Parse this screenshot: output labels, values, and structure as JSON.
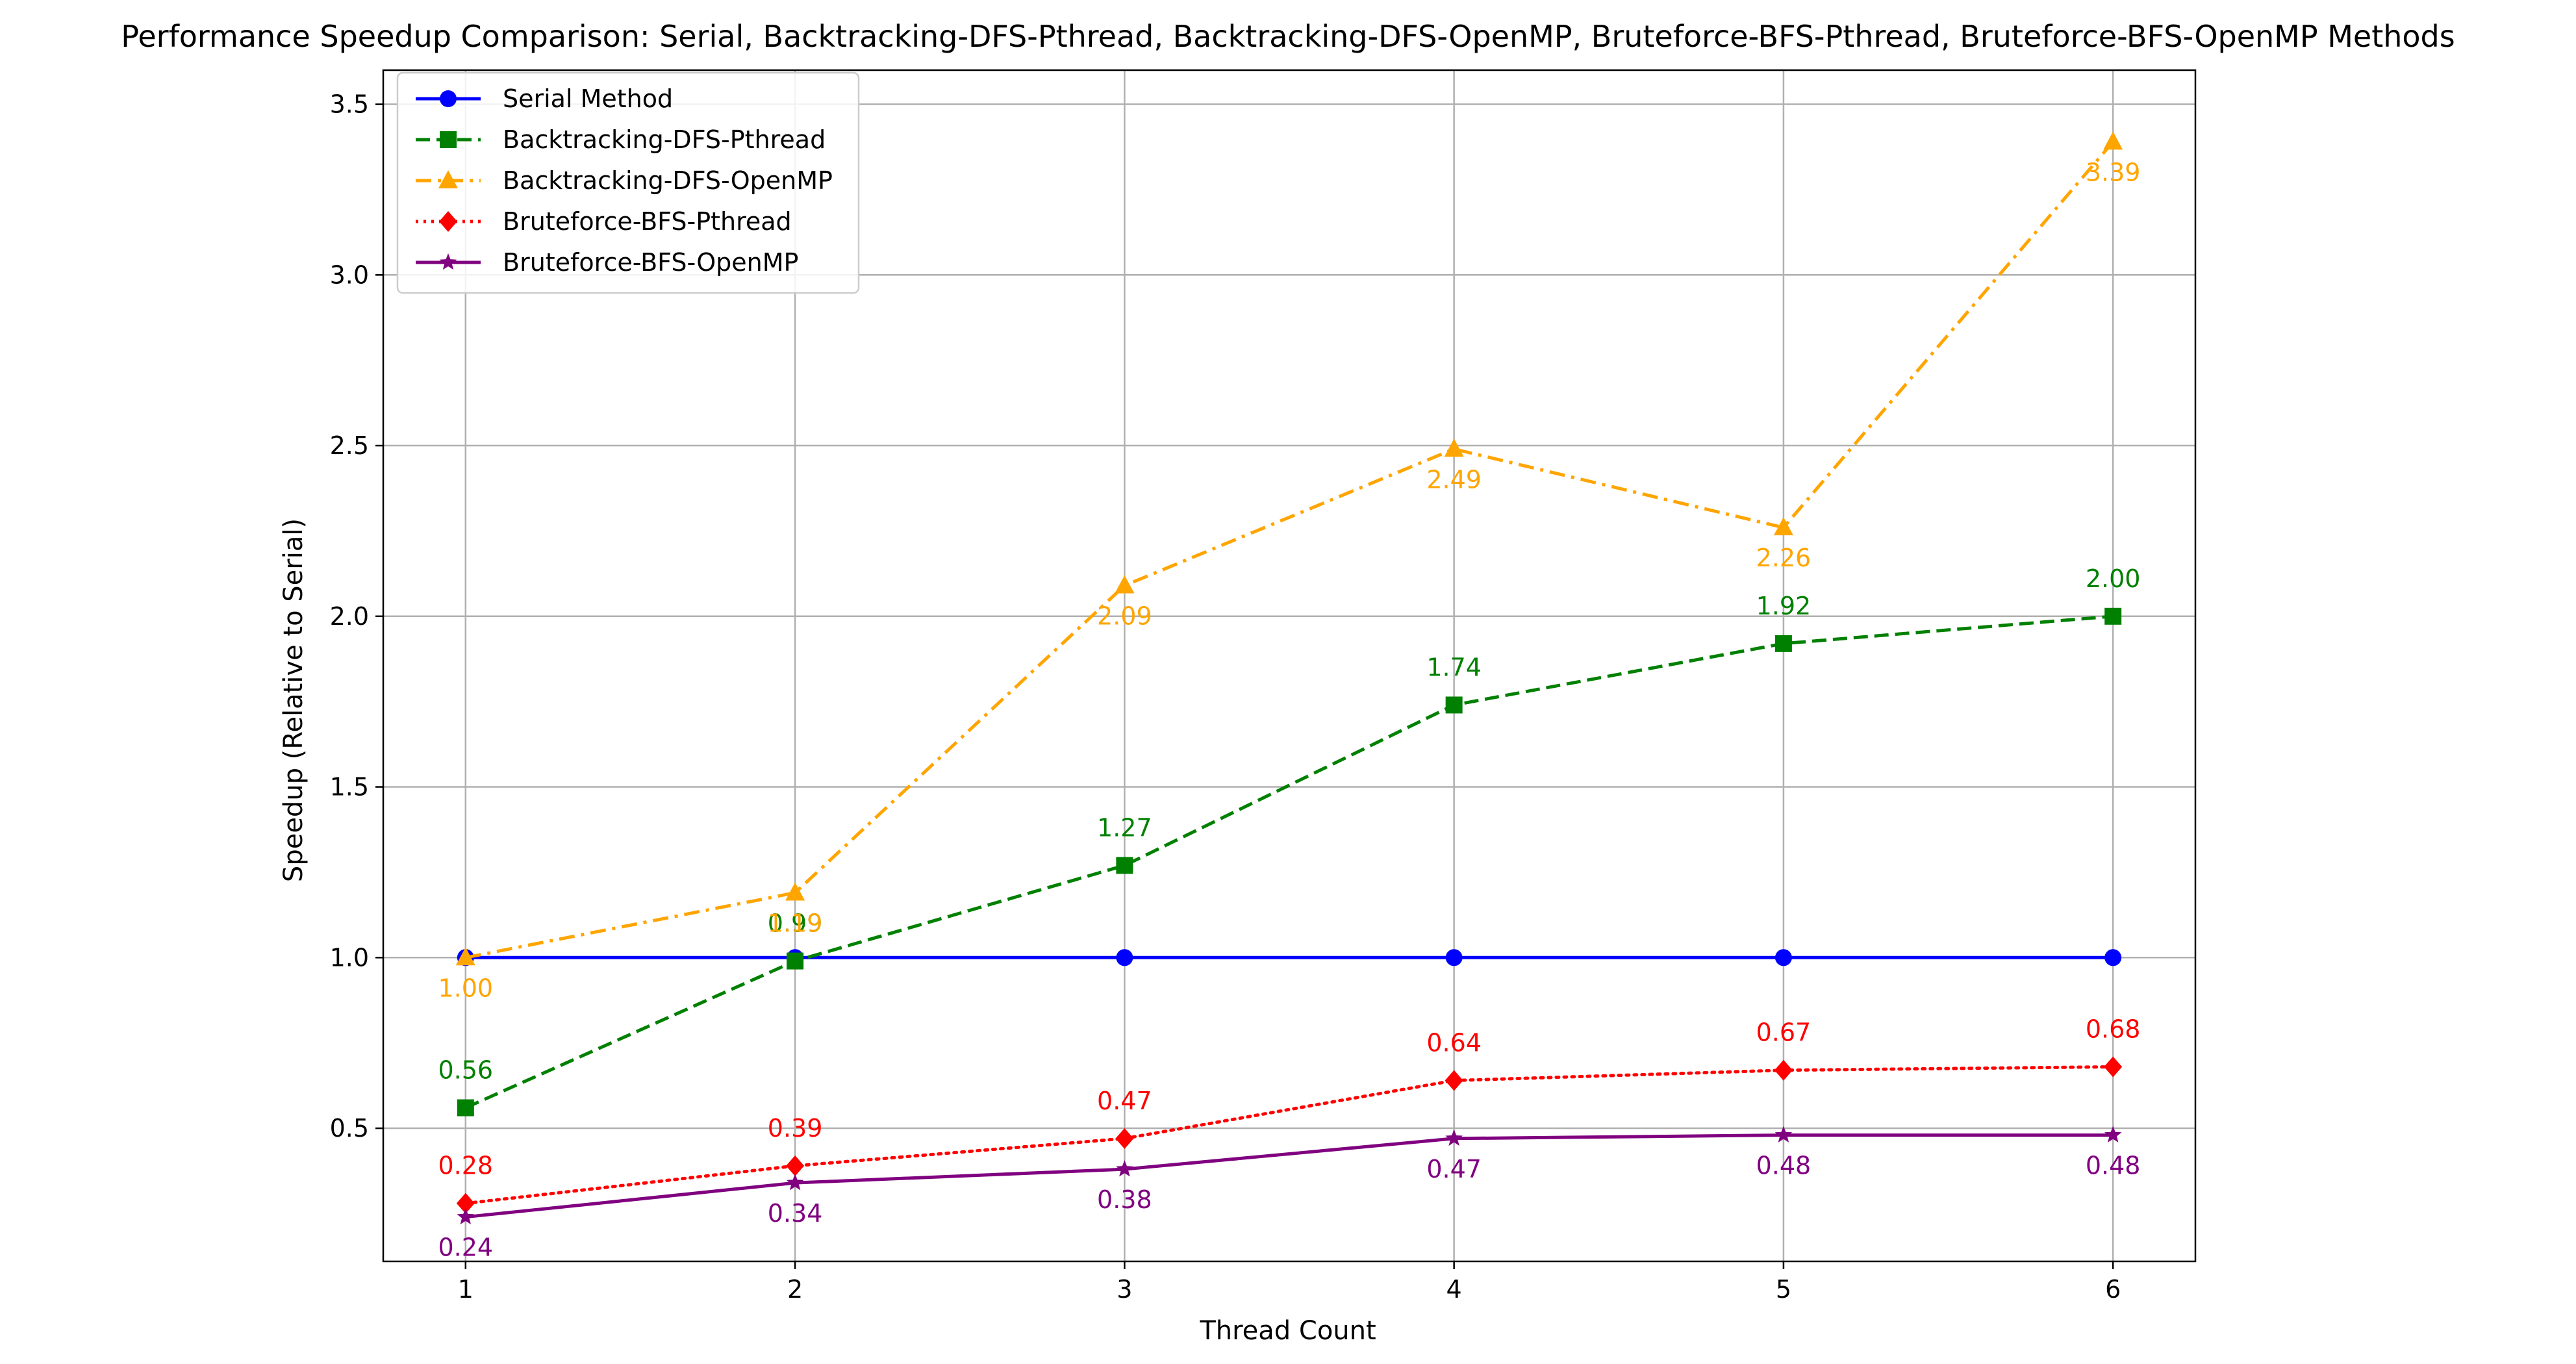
{
  "chart_data": {
    "type": "line",
    "title": "Performance Speedup Comparison: Serial, Backtracking-DFS-Pthread, Backtracking-DFS-OpenMP, Bruteforce-BFS-Pthread, Bruteforce-BFS-OpenMP Methods",
    "xlabel": "Thread Count",
    "ylabel": "Speedup (Relative to Serial)",
    "x": [
      1,
      2,
      3,
      4,
      5,
      6
    ],
    "xticks": [
      "1",
      "2",
      "3",
      "4",
      "5",
      "6"
    ],
    "xlim": [
      0.75,
      6.25
    ],
    "ylim": [
      0.11,
      3.6
    ],
    "yticks": [
      "0.5",
      "1.0",
      "1.5",
      "2.0",
      "2.5",
      "3.0",
      "3.5"
    ],
    "grid": true,
    "legend_position": "top-left",
    "series": [
      {
        "name": "Serial Method",
        "values": [
          1.0,
          1.0,
          1.0,
          1.0,
          1.0,
          1.0
        ],
        "color": "#0000ff",
        "line_style": "solid",
        "marker": "circle",
        "labels": []
      },
      {
        "name": "Backtracking-DFS-Pthread",
        "values": [
          0.56,
          0.99,
          1.27,
          1.74,
          1.92,
          2.0
        ],
        "color": "#008000",
        "line_style": "dashed",
        "marker": "square",
        "label_position": "above",
        "labels": [
          "0.56",
          "0.99",
          "1.27",
          "1.74",
          "1.92",
          "2.00"
        ]
      },
      {
        "name": "Backtracking-DFS-OpenMP",
        "values": [
          1.0,
          1.19,
          2.09,
          2.49,
          2.26,
          3.39
        ],
        "color": "#ffa500",
        "line_style": "dashdot",
        "marker": "triangle-up",
        "label_position": "below",
        "labels": [
          "1.00",
          "1.19",
          "2.09",
          "2.49",
          "2.26",
          "3.39"
        ]
      },
      {
        "name": "Bruteforce-BFS-Pthread",
        "values": [
          0.28,
          0.39,
          0.47,
          0.64,
          0.67,
          0.68
        ],
        "color": "#ff0000",
        "line_style": "dotted",
        "marker": "diamond",
        "label_position": "above",
        "labels": [
          "0.28",
          "0.39",
          "0.47",
          "0.64",
          "0.67",
          "0.68"
        ]
      },
      {
        "name": "Bruteforce-BFS-OpenMP",
        "values": [
          0.24,
          0.34,
          0.38,
          0.47,
          0.48,
          0.48
        ],
        "color": "#800080",
        "line_style": "solid",
        "marker": "star",
        "label_position": "below",
        "labels": [
          "0.24",
          "0.34",
          "0.38",
          "0.47",
          "0.48",
          "0.48"
        ]
      }
    ]
  }
}
